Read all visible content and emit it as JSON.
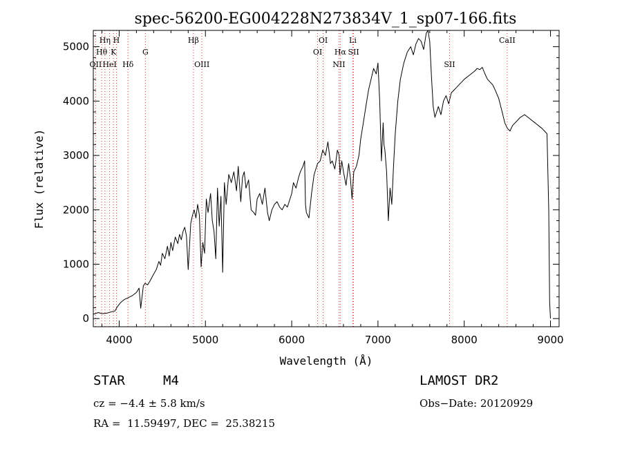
{
  "chart_data": {
    "type": "line",
    "title": "spec-56200-EG004228N273834V_1_sp07-166.fits",
    "xlabel": "Wavelength (Å)",
    "ylabel": "Flux (relative)",
    "xlim": [
      3700,
      9100
    ],
    "ylim": [
      -150,
      5300
    ],
    "xticks": [
      4000,
      5000,
      6000,
      7000,
      8000,
      9000
    ],
    "yticks": [
      0,
      1000,
      2000,
      3000,
      4000,
      5000
    ],
    "line_color": "#000000",
    "marker_color": "#cc0000",
    "spectral_lines": [
      {
        "label": "Hη",
        "wavelength": 3835,
        "row": 0
      },
      {
        "label": "H",
        "wavelength": 3968,
        "row": 0
      },
      {
        "label": "Hθ",
        "wavelength": 3797,
        "row": 1
      },
      {
        "label": "K",
        "wavelength": 3934,
        "row": 1
      },
      {
        "label": "OII",
        "wavelength": 3727,
        "row": 2
      },
      {
        "label": "HeI",
        "wavelength": 3889,
        "row": 2
      },
      {
        "label": "Hδ",
        "wavelength": 4102,
        "row": 2
      },
      {
        "label": "G",
        "wavelength": 4304,
        "row": 1
      },
      {
        "label": "Hβ",
        "wavelength": 4861,
        "row": 0
      },
      {
        "label": "OIII",
        "wavelength": 4959,
        "row": 2
      },
      {
        "label": "OI",
        "wavelength": 6364,
        "row": 0
      },
      {
        "label": "OI",
        "wavelength": 6300,
        "row": 1
      },
      {
        "label": "NII",
        "wavelength": 6548,
        "row": 2
      },
      {
        "label": "Li",
        "wavelength": 6708,
        "row": 0
      },
      {
        "label": "Hα",
        "wavelength": 6563,
        "row": 1
      },
      {
        "label": "SII",
        "wavelength": 6717,
        "row": 1
      },
      {
        "label": "SII",
        "wavelength": 7830,
        "row": 2
      },
      {
        "label": "CaII",
        "wavelength": 8498,
        "row": 0
      }
    ],
    "series": [
      {
        "x": [
          3700,
          3760,
          3800,
          3860,
          3900,
          3950,
          3980,
          4020,
          4060,
          4100,
          4150,
          4200,
          4230,
          4250,
          4280,
          4300,
          4330,
          4360,
          4400,
          4430,
          4460,
          4480,
          4500,
          4530,
          4560,
          4580,
          4600,
          4620,
          4650,
          4680,
          4700,
          4720,
          4740,
          4760,
          4780,
          4800,
          4830,
          4850,
          4870,
          4890,
          4910,
          4930,
          4950,
          4970,
          4990,
          5010,
          5030,
          5060,
          5080,
          5100,
          5120,
          5140,
          5160,
          5180,
          5200,
          5220,
          5240,
          5270,
          5300,
          5330,
          5360,
          5380,
          5410,
          5430,
          5450,
          5470,
          5500,
          5530,
          5560,
          5580,
          5600,
          5630,
          5660,
          5690,
          5720,
          5740,
          5770,
          5800,
          5830,
          5860,
          5890,
          5920,
          5950,
          5980,
          6000,
          6020,
          6050,
          6080,
          6100,
          6130,
          6150,
          6160,
          6170,
          6200,
          6230,
          6260,
          6300,
          6330,
          6360,
          6390,
          6420,
          6450,
          6470,
          6500,
          6530,
          6550,
          6560,
          6580,
          6600,
          6630,
          6660,
          6680,
          6700,
          6720,
          6750,
          6780,
          6800,
          6830,
          6860,
          6890,
          6920,
          6950,
          6980,
          7000,
          7020,
          7040,
          7060,
          7070,
          7080,
          7100,
          7120,
          7140,
          7160,
          7180,
          7200,
          7230,
          7260,
          7300,
          7340,
          7380,
          7410,
          7440,
          7470,
          7500,
          7530,
          7560,
          7580,
          7590,
          7600,
          7620,
          7640,
          7660,
          7680,
          7700,
          7730,
          7760,
          7790,
          7820,
          7850,
          7880,
          7910,
          7940,
          7970,
          8000,
          8040,
          8080,
          8120,
          8150,
          8180,
          8210,
          8240,
          8270,
          8300,
          8330,
          8360,
          8400,
          8440,
          8470,
          8500,
          8530,
          8560,
          8590,
          8620,
          8650,
          8700,
          8740,
          8780,
          8820,
          8860,
          8900,
          8930,
          8960,
          8980,
          8990,
          9000
        ],
        "y": [
          80,
          110,
          90,
          100,
          120,
          140,
          220,
          300,
          350,
          380,
          420,
          480,
          560,
          190,
          600,
          650,
          620,
          700,
          820,
          900,
          1050,
          980,
          1200,
          1100,
          1330,
          1150,
          1400,
          1250,
          1500,
          1380,
          1550,
          1450,
          1600,
          1680,
          1520,
          900,
          1750,
          1900,
          2000,
          1850,
          2100,
          1900,
          950,
          1400,
          1200,
          2200,
          1950,
          2300,
          1800,
          1600,
          1100,
          2400,
          1700,
          2250,
          850,
          2500,
          2100,
          2650,
          2500,
          2700,
          2350,
          2800,
          2150,
          2600,
          2700,
          2400,
          2550,
          2000,
          1950,
          1900,
          2200,
          2300,
          2100,
          2400,
          1950,
          1800,
          2000,
          2100,
          2150,
          2050,
          2000,
          2100,
          2050,
          2200,
          2300,
          2500,
          2400,
          2600,
          2700,
          2800,
          2900,
          2100,
          1950,
          1850,
          2300,
          2650,
          2850,
          2900,
          3100,
          3000,
          3250,
          2850,
          2900,
          2750,
          3100,
          3000,
          2650,
          2900,
          2700,
          2450,
          2850,
          2600,
          2200,
          2700,
          2800,
          3000,
          3300,
          3600,
          3900,
          4200,
          4400,
          4600,
          4500,
          4700,
          4000,
          2900,
          3600,
          3200,
          3100,
          2700,
          1800,
          2400,
          2100,
          2800,
          3400,
          4000,
          4400,
          4700,
          4900,
          5000,
          4850,
          5050,
          5150,
          5100,
          4950,
          5250,
          5300,
          5200,
          5100,
          4450,
          3900,
          3700,
          3800,
          3900,
          3750,
          4000,
          4100,
          3950,
          4150,
          4200,
          4250,
          4300,
          4350,
          4400,
          4450,
          4500,
          4550,
          4600,
          4580,
          4620,
          4500,
          4400,
          4350,
          4300,
          4200,
          4050,
          3800,
          3600,
          3500,
          3450,
          3550,
          3600,
          3650,
          3700,
          3750,
          3700,
          3650,
          3600,
          3550,
          3500,
          3450,
          3400,
          2000,
          300,
          0
        ]
      }
    ]
  },
  "info": {
    "object_class": "STAR",
    "subclass": "M4",
    "survey": "LAMOST DR2",
    "cz": "cz = −4.4 ± 5.8 km/s",
    "obs_date": "Obs−Date: 20120929",
    "coords": "RA =  11.59497, DEC =  25.38215"
  }
}
